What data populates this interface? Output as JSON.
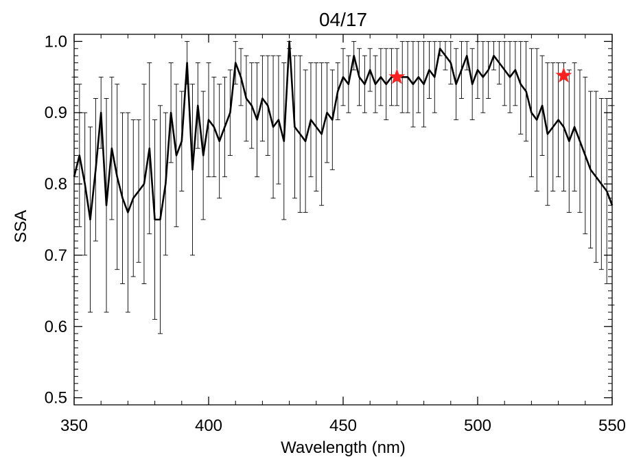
{
  "chart_data": {
    "type": "line",
    "title": "04/17",
    "xlabel": "Wavelength (nm)",
    "ylabel": "SSA",
    "xlim": [
      350,
      550
    ],
    "ylim": [
      0.49,
      1.01
    ],
    "x_ticks": [
      350,
      400,
      450,
      500,
      550
    ],
    "x_tick_labels": [
      "350",
      "400",
      "450",
      "500",
      "550"
    ],
    "y_ticks": [
      0.5,
      0.6,
      0.7,
      0.8,
      0.9,
      1.0
    ],
    "y_tick_labels": [
      "0.5",
      "0.6",
      "0.7",
      "0.8",
      "0.9",
      "1.0"
    ],
    "grid": false,
    "line_color": "#000000",
    "marker_color": "#ff2020",
    "series": [
      {
        "x": [
          350,
          352,
          354,
          356,
          358,
          360,
          362,
          364,
          366,
          368,
          370,
          372,
          374,
          376,
          378,
          380,
          382,
          384,
          386,
          388,
          390,
          392,
          394,
          396,
          398,
          400,
          402,
          404,
          406,
          408,
          410,
          412,
          414,
          416,
          418,
          420,
          422,
          424,
          426,
          428,
          430,
          432,
          434,
          436,
          438,
          440,
          442,
          444,
          446,
          448,
          450,
          452,
          454,
          456,
          458,
          460,
          462,
          464,
          466,
          468,
          470,
          472,
          474,
          476,
          478,
          480,
          482,
          484,
          486,
          488,
          490,
          492,
          494,
          496,
          498,
          500,
          502,
          504,
          506,
          508,
          510,
          512,
          514,
          516,
          518,
          520,
          522,
          524,
          526,
          528,
          530,
          532,
          534,
          536,
          538,
          540,
          542,
          544,
          546,
          548,
          550
        ],
        "y": [
          0.81,
          0.84,
          0.8,
          0.75,
          0.82,
          0.9,
          0.77,
          0.85,
          0.81,
          0.78,
          0.76,
          0.78,
          0.79,
          0.8,
          0.85,
          0.75,
          0.75,
          0.8,
          0.9,
          0.84,
          0.86,
          0.97,
          0.82,
          0.91,
          0.84,
          0.89,
          0.88,
          0.86,
          0.88,
          0.9,
          0.97,
          0.95,
          0.92,
          0.91,
          0.89,
          0.92,
          0.91,
          0.88,
          0.89,
          0.86,
          1.0,
          0.88,
          0.87,
          0.86,
          0.89,
          0.88,
          0.87,
          0.9,
          0.89,
          0.93,
          0.95,
          0.94,
          0.98,
          0.95,
          0.94,
          0.96,
          0.94,
          0.95,
          0.94,
          0.95,
          0.95,
          0.95,
          0.95,
          0.94,
          0.95,
          0.94,
          0.96,
          0.95,
          0.99,
          0.98,
          0.97,
          0.94,
          0.96,
          0.98,
          0.94,
          0.96,
          0.95,
          0.96,
          0.98,
          0.97,
          0.96,
          0.95,
          0.96,
          0.94,
          0.93,
          0.9,
          0.89,
          0.91,
          0.87,
          0.88,
          0.89,
          0.88,
          0.86,
          0.88,
          0.86,
          0.84,
          0.82,
          0.81,
          0.8,
          0.79,
          0.77
        ],
        "err": [
          0.14,
          0.1,
          0.1,
          0.13,
          0.1,
          0.05,
          0.15,
          0.1,
          0.13,
          0.12,
          0.14,
          0.11,
          0.1,
          0.14,
          0.12,
          0.14,
          0.16,
          0.1,
          0.07,
          0.1,
          0.07,
          0.03,
          0.12,
          0.06,
          0.09,
          0.08,
          0.07,
          0.08,
          0.07,
          0.06,
          0.03,
          0.04,
          0.06,
          0.06,
          0.08,
          0.06,
          0.07,
          0.1,
          0.09,
          0.11,
          0.01,
          0.1,
          0.11,
          0.1,
          0.08,
          0.09,
          0.1,
          0.07,
          0.07,
          0.04,
          0.04,
          0.04,
          0.02,
          0.04,
          0.04,
          0.03,
          0.04,
          0.04,
          0.05,
          0.04,
          0.04,
          0.05,
          0.05,
          0.06,
          0.05,
          0.06,
          0.04,
          0.05,
          0.01,
          0.02,
          0.03,
          0.05,
          0.04,
          0.02,
          0.05,
          0.04,
          0.05,
          0.04,
          0.02,
          0.03,
          0.05,
          0.05,
          0.05,
          0.07,
          0.07,
          0.09,
          0.1,
          0.07,
          0.1,
          0.09,
          0.08,
          0.09,
          0.1,
          0.09,
          0.1,
          0.11,
          0.11,
          0.12,
          0.12,
          0.13,
          0.14
        ]
      }
    ],
    "markers": [
      {
        "x": 470,
        "y": 0.95,
        "shape": "star"
      },
      {
        "x": 532,
        "y": 0.952,
        "shape": "star"
      }
    ]
  }
}
